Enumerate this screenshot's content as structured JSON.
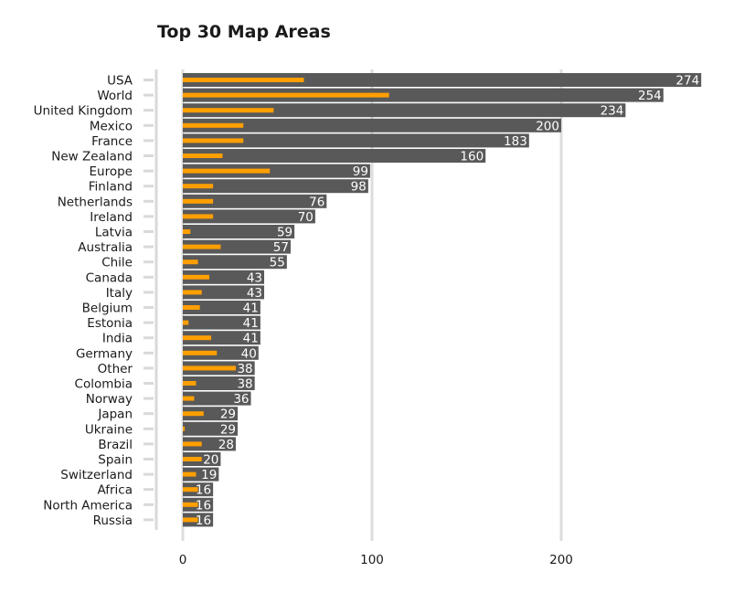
{
  "chart_data": {
    "type": "bar",
    "orientation": "horizontal",
    "title": "Top 30 Map Areas",
    "xlabel": "",
    "ylabel": "",
    "xlim": [
      0,
      290
    ],
    "xticks": [
      0,
      100,
      200
    ],
    "grid": true,
    "colors": {
      "bar": "#595959",
      "overlay": "#ff9f00",
      "grid": "#dddddd",
      "label": "#ffffff"
    },
    "categories": [
      "USA",
      "World",
      "United Kingdom",
      "Mexico",
      "France",
      "New Zealand",
      "Europe",
      "Finland",
      "Netherlands",
      "Ireland",
      "Latvia",
      "Australia",
      "Chile",
      "Canada",
      "Italy",
      "Belgium",
      "Estonia",
      "India",
      "Germany",
      "Other",
      "Colombia",
      "Norway",
      "Japan",
      "Ukraine",
      "Brazil",
      "Spain",
      "Switzerland",
      "Africa",
      "North America",
      "Russia"
    ],
    "series": [
      {
        "values": [
          274,
          254,
          234,
          200,
          183,
          160,
          99,
          98,
          76,
          70,
          59,
          57,
          55,
          43,
          43,
          41,
          41,
          41,
          40,
          38,
          38,
          36,
          29,
          29,
          28,
          20,
          19,
          16,
          16,
          16
        ]
      },
      {
        "values": [
          64,
          109,
          48,
          32,
          32,
          21,
          46,
          16,
          16,
          16,
          4,
          20,
          8,
          14,
          10,
          9,
          3,
          15,
          18,
          28,
          7,
          6,
          11,
          1,
          10,
          10,
          7,
          8,
          8,
          8
        ]
      }
    ]
  }
}
